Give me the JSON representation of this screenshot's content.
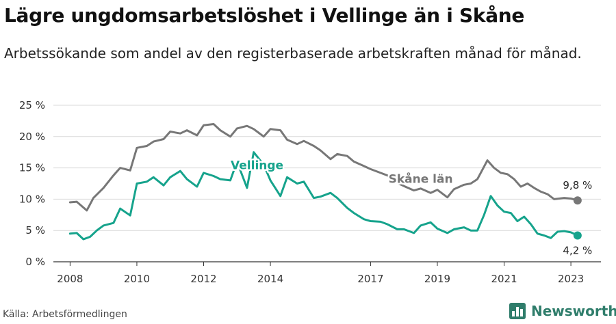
{
  "header": {
    "title": "Lägre ungdomsarbetslöshet i Vellinge än i Skåne",
    "subtitle": "Arbetssökande som andel av den registerbaserade arbetskraften månad för månad."
  },
  "footer": {
    "source": "Källa: Arbetsförmedlingen",
    "brand": "Newsworthy"
  },
  "colors": {
    "skane": "#777777",
    "vellinge": "#16a38c",
    "grid": "#d9d9d9",
    "brand": "#2f7d6b"
  },
  "chart_data": {
    "type": "line",
    "title": "Lägre ungdomsarbetslöshet i Vellinge än i Skåne",
    "xlabel": "",
    "ylabel": "",
    "xlim": [
      2007.5,
      2023.9
    ],
    "ylim": [
      0,
      25
    ],
    "yticks": [
      0,
      5,
      10,
      15,
      20,
      25
    ],
    "ytick_labels": [
      "0 %",
      "5 %",
      "10 %",
      "15 %",
      "20 %",
      "25 %"
    ],
    "xticks": [
      2008,
      2010,
      2012,
      2014,
      2017,
      2019,
      2021,
      2023
    ],
    "xtick_labels": [
      "2008",
      "2010",
      "2012",
      "2014",
      "2017",
      "2019",
      "2021",
      "2023"
    ],
    "series": [
      {
        "name": "Skåne län",
        "label": "Skåne län",
        "end_label": "9,8 %",
        "points": [
          [
            2008.0,
            9.5
          ],
          [
            2008.2,
            9.6
          ],
          [
            2008.5,
            8.2
          ],
          [
            2008.7,
            10.2
          ],
          [
            2009.0,
            11.8
          ],
          [
            2009.3,
            13.8
          ],
          [
            2009.5,
            15.0
          ],
          [
            2009.8,
            14.6
          ],
          [
            2010.0,
            18.2
          ],
          [
            2010.3,
            18.5
          ],
          [
            2010.5,
            19.2
          ],
          [
            2010.8,
            19.6
          ],
          [
            2011.0,
            20.8
          ],
          [
            2011.3,
            20.5
          ],
          [
            2011.5,
            21.0
          ],
          [
            2011.8,
            20.2
          ],
          [
            2012.0,
            21.8
          ],
          [
            2012.3,
            22.0
          ],
          [
            2012.5,
            21.0
          ],
          [
            2012.8,
            20.0
          ],
          [
            2013.0,
            21.3
          ],
          [
            2013.3,
            21.7
          ],
          [
            2013.5,
            21.2
          ],
          [
            2013.8,
            20.0
          ],
          [
            2014.0,
            21.2
          ],
          [
            2014.3,
            21.0
          ],
          [
            2014.5,
            19.5
          ],
          [
            2014.8,
            18.8
          ],
          [
            2015.0,
            19.3
          ],
          [
            2015.3,
            18.5
          ],
          [
            2015.5,
            17.8
          ],
          [
            2015.8,
            16.4
          ],
          [
            2016.0,
            17.2
          ],
          [
            2016.3,
            16.9
          ],
          [
            2016.5,
            16.0
          ],
          [
            2016.8,
            15.3
          ],
          [
            2017.0,
            14.8
          ],
          [
            2017.3,
            14.2
          ],
          [
            2017.5,
            13.8
          ],
          [
            2017.8,
            12.6
          ],
          [
            2018.0,
            12.1
          ],
          [
            2018.3,
            11.4
          ],
          [
            2018.5,
            11.7
          ],
          [
            2018.8,
            11.0
          ],
          [
            2019.0,
            11.5
          ],
          [
            2019.3,
            10.3
          ],
          [
            2019.5,
            11.6
          ],
          [
            2019.8,
            12.3
          ],
          [
            2020.0,
            12.5
          ],
          [
            2020.2,
            13.2
          ],
          [
            2020.5,
            16.2
          ],
          [
            2020.7,
            15.0
          ],
          [
            2020.9,
            14.2
          ],
          [
            2021.1,
            14.0
          ],
          [
            2021.3,
            13.2
          ],
          [
            2021.5,
            12.0
          ],
          [
            2021.7,
            12.5
          ],
          [
            2021.9,
            11.8
          ],
          [
            2022.1,
            11.2
          ],
          [
            2022.3,
            10.8
          ],
          [
            2022.5,
            10.0
          ],
          [
            2022.8,
            10.2
          ],
          [
            2023.0,
            10.1
          ],
          [
            2023.2,
            9.8
          ]
        ]
      },
      {
        "name": "Vellinge",
        "label": "Vellinge",
        "end_label": "4,2 %",
        "points": [
          [
            2008.0,
            4.5
          ],
          [
            2008.2,
            4.6
          ],
          [
            2008.4,
            3.6
          ],
          [
            2008.6,
            4.0
          ],
          [
            2008.8,
            5.0
          ],
          [
            2009.0,
            5.8
          ],
          [
            2009.3,
            6.2
          ],
          [
            2009.5,
            8.5
          ],
          [
            2009.8,
            7.4
          ],
          [
            2010.0,
            12.5
          ],
          [
            2010.3,
            12.8
          ],
          [
            2010.5,
            13.5
          ],
          [
            2010.8,
            12.2
          ],
          [
            2011.0,
            13.5
          ],
          [
            2011.3,
            14.5
          ],
          [
            2011.5,
            13.2
          ],
          [
            2011.8,
            12.0
          ],
          [
            2012.0,
            14.2
          ],
          [
            2012.3,
            13.7
          ],
          [
            2012.5,
            13.2
          ],
          [
            2012.8,
            13.0
          ],
          [
            2013.0,
            16.0
          ],
          [
            2013.3,
            11.8
          ],
          [
            2013.5,
            17.5
          ],
          [
            2013.8,
            15.5
          ],
          [
            2014.0,
            13.0
          ],
          [
            2014.3,
            10.5
          ],
          [
            2014.5,
            13.5
          ],
          [
            2014.8,
            12.5
          ],
          [
            2015.0,
            12.8
          ],
          [
            2015.3,
            10.2
          ],
          [
            2015.5,
            10.4
          ],
          [
            2015.8,
            11.0
          ],
          [
            2016.0,
            10.2
          ],
          [
            2016.3,
            8.6
          ],
          [
            2016.5,
            7.8
          ],
          [
            2016.8,
            6.8
          ],
          [
            2017.0,
            6.5
          ],
          [
            2017.3,
            6.4
          ],
          [
            2017.5,
            6.0
          ],
          [
            2017.8,
            5.2
          ],
          [
            2018.0,
            5.2
          ],
          [
            2018.3,
            4.6
          ],
          [
            2018.5,
            5.8
          ],
          [
            2018.8,
            6.3
          ],
          [
            2019.0,
            5.3
          ],
          [
            2019.3,
            4.6
          ],
          [
            2019.5,
            5.2
          ],
          [
            2019.8,
            5.5
          ],
          [
            2020.0,
            5.0
          ],
          [
            2020.2,
            5.0
          ],
          [
            2020.4,
            7.5
          ],
          [
            2020.6,
            10.5
          ],
          [
            2020.8,
            9.0
          ],
          [
            2021.0,
            8.0
          ],
          [
            2021.2,
            7.8
          ],
          [
            2021.4,
            6.5
          ],
          [
            2021.6,
            7.2
          ],
          [
            2021.8,
            6.0
          ],
          [
            2022.0,
            4.5
          ],
          [
            2022.2,
            4.2
          ],
          [
            2022.4,
            3.8
          ],
          [
            2022.6,
            4.8
          ],
          [
            2022.8,
            4.9
          ],
          [
            2023.0,
            4.7
          ],
          [
            2023.2,
            4.2
          ]
        ]
      }
    ]
  }
}
